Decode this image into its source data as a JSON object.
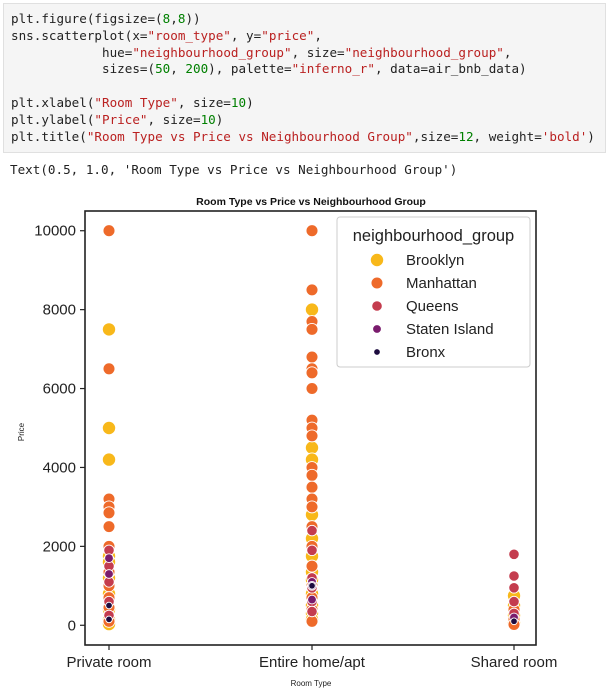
{
  "notebook": {
    "code_lines": [
      [
        [
          "plt.figure(figsize=(",
          ""
        ],
        [
          "8",
          "num"
        ],
        [
          ",",
          ""
        ],
        [
          "8",
          "num"
        ],
        [
          "))",
          ""
        ]
      ],
      [
        [
          "sns.scatterplot(x=",
          ""
        ],
        [
          "\"room_type\"",
          "str"
        ],
        [
          ", y=",
          ""
        ],
        [
          "\"price\"",
          "str"
        ],
        [
          ",",
          ""
        ]
      ],
      [
        [
          "            hue=",
          ""
        ],
        [
          "\"neighbourhood_group\"",
          "str"
        ],
        [
          ", size=",
          ""
        ],
        [
          "\"neighbourhood_group\"",
          "str"
        ],
        [
          ",",
          ""
        ]
      ],
      [
        [
          "            sizes=(",
          ""
        ],
        [
          "50",
          "num"
        ],
        [
          ", ",
          ""
        ],
        [
          "200",
          "num"
        ],
        [
          "), palette=",
          ""
        ],
        [
          "\"inferno_r\"",
          "str"
        ],
        [
          ", data=air_bnb_data)",
          ""
        ]
      ],
      [
        [
          "",
          ""
        ]
      ],
      [
        [
          "plt.xlabel(",
          ""
        ],
        [
          "\"Room Type\"",
          "str"
        ],
        [
          ", size=",
          ""
        ],
        [
          "10",
          "num"
        ],
        [
          ")",
          ""
        ]
      ],
      [
        [
          "plt.ylabel(",
          ""
        ],
        [
          "\"Price\"",
          "str"
        ],
        [
          ", size=",
          ""
        ],
        [
          "10",
          "num"
        ],
        [
          ")",
          ""
        ]
      ],
      [
        [
          "plt.title(",
          ""
        ],
        [
          "\"Room Type vs Price vs Neighbourhood Group\"",
          "str"
        ],
        [
          ",size=",
          ""
        ],
        [
          "12",
          "num"
        ],
        [
          ", weight=",
          ""
        ],
        [
          "'bold'",
          "str"
        ],
        [
          ")",
          ""
        ]
      ]
    ],
    "output_text": "Text(0.5, 1.0, 'Room Type vs Price vs Neighbourhood Group')",
    "colors": {
      "string": "#ba2121",
      "number": "#008000"
    }
  },
  "chart_data": {
    "type": "scatter",
    "title": "Room Type vs Price vs Neighbourhood Group",
    "xlabel": "Room Type",
    "ylabel": "Price",
    "categories": [
      "Private room",
      "Entire home/apt",
      "Shared room"
    ],
    "yticks": [
      0,
      2000,
      4000,
      6000,
      8000,
      10000
    ],
    "ylim": [
      -500,
      10500
    ],
    "legend": {
      "title": "neighbourhood_group",
      "placement": "top-right"
    },
    "series": [
      {
        "name": "Brooklyn",
        "color": "#f8b81a",
        "size": 200,
        "points": [
          [
            "Private room",
            7500
          ],
          [
            "Private room",
            5000
          ],
          [
            "Private room",
            4200
          ],
          [
            "Private room",
            1750
          ],
          [
            "Private room",
            1600
          ],
          [
            "Private room",
            1200
          ],
          [
            "Private room",
            800
          ],
          [
            "Private room",
            400
          ],
          [
            "Private room",
            150
          ],
          [
            "Private room",
            30
          ],
          [
            "Entire home/apt",
            8000
          ],
          [
            "Entire home/apt",
            4500
          ],
          [
            "Entire home/apt",
            4200
          ],
          [
            "Entire home/apt",
            3500
          ],
          [
            "Entire home/apt",
            2800
          ],
          [
            "Entire home/apt",
            2200
          ],
          [
            "Entire home/apt",
            1750
          ],
          [
            "Entire home/apt",
            1350
          ],
          [
            "Entire home/apt",
            1150
          ],
          [
            "Entire home/apt",
            800
          ],
          [
            "Entire home/apt",
            500
          ],
          [
            "Entire home/apt",
            300
          ],
          [
            "Entire home/apt",
            150
          ],
          [
            "Shared room",
            750
          ],
          [
            "Shared room",
            500
          ],
          [
            "Shared room",
            250
          ],
          [
            "Shared room",
            60
          ]
        ]
      },
      {
        "name": "Manhattan",
        "color": "#ee6a2a",
        "size": 162,
        "points": [
          [
            "Private room",
            10000
          ],
          [
            "Private room",
            6500
          ],
          [
            "Private room",
            3200
          ],
          [
            "Private room",
            3000
          ],
          [
            "Private room",
            2850
          ],
          [
            "Private room",
            2500
          ],
          [
            "Private room",
            2000
          ],
          [
            "Private room",
            1350
          ],
          [
            "Private room",
            1000
          ],
          [
            "Private room",
            700
          ],
          [
            "Private room",
            450
          ],
          [
            "Private room",
            100
          ],
          [
            "Entire home/apt",
            10000
          ],
          [
            "Entire home/apt",
            8500
          ],
          [
            "Entire home/apt",
            7700
          ],
          [
            "Entire home/apt",
            7500
          ],
          [
            "Entire home/apt",
            6800
          ],
          [
            "Entire home/apt",
            6500
          ],
          [
            "Entire home/apt",
            6400
          ],
          [
            "Entire home/apt",
            6000
          ],
          [
            "Entire home/apt",
            5200
          ],
          [
            "Entire home/apt",
            5000
          ],
          [
            "Entire home/apt",
            4800
          ],
          [
            "Entire home/apt",
            4000
          ],
          [
            "Entire home/apt",
            3800
          ],
          [
            "Entire home/apt",
            3500
          ],
          [
            "Entire home/apt",
            3200
          ],
          [
            "Entire home/apt",
            3000
          ],
          [
            "Entire home/apt",
            2500
          ],
          [
            "Entire home/apt",
            2000
          ],
          [
            "Entire home/apt",
            1500
          ],
          [
            "Entire home/apt",
            1000
          ],
          [
            "Entire home/apt",
            700
          ],
          [
            "Entire home/apt",
            400
          ],
          [
            "Entire home/apt",
            100
          ],
          [
            "Shared room",
            400
          ],
          [
            "Shared room",
            150
          ],
          [
            "Shared room",
            20
          ]
        ]
      },
      {
        "name": "Queens",
        "color": "#c43c4e",
        "size": 125,
        "points": [
          [
            "Private room",
            1900
          ],
          [
            "Private room",
            1500
          ],
          [
            "Private room",
            1100
          ],
          [
            "Private room",
            600
          ],
          [
            "Private room",
            250
          ],
          [
            "Entire home/apt",
            2400
          ],
          [
            "Entire home/apt",
            1900
          ],
          [
            "Entire home/apt",
            1200
          ],
          [
            "Entire home/apt",
            950
          ],
          [
            "Entire home/apt",
            600
          ],
          [
            "Entire home/apt",
            350
          ],
          [
            "Shared room",
            1800
          ],
          [
            "Shared room",
            1250
          ],
          [
            "Shared room",
            950
          ],
          [
            "Shared room",
            600
          ],
          [
            "Shared room",
            300
          ]
        ]
      },
      {
        "name": "Staten Island",
        "color": "#7a1c6d",
        "size": 87,
        "points": [
          [
            "Private room",
            1700
          ],
          [
            "Private room",
            1300
          ],
          [
            "Entire home/apt",
            1100
          ],
          [
            "Entire home/apt",
            1000
          ],
          [
            "Entire home/apt",
            650
          ],
          [
            "Shared room",
            200
          ]
        ]
      },
      {
        "name": "Bronx",
        "color": "#1d0c3f",
        "size": 50,
        "points": [
          [
            "Private room",
            500
          ],
          [
            "Private room",
            150
          ],
          [
            "Entire home/apt",
            1000
          ],
          [
            "Shared room",
            100
          ]
        ]
      }
    ]
  }
}
